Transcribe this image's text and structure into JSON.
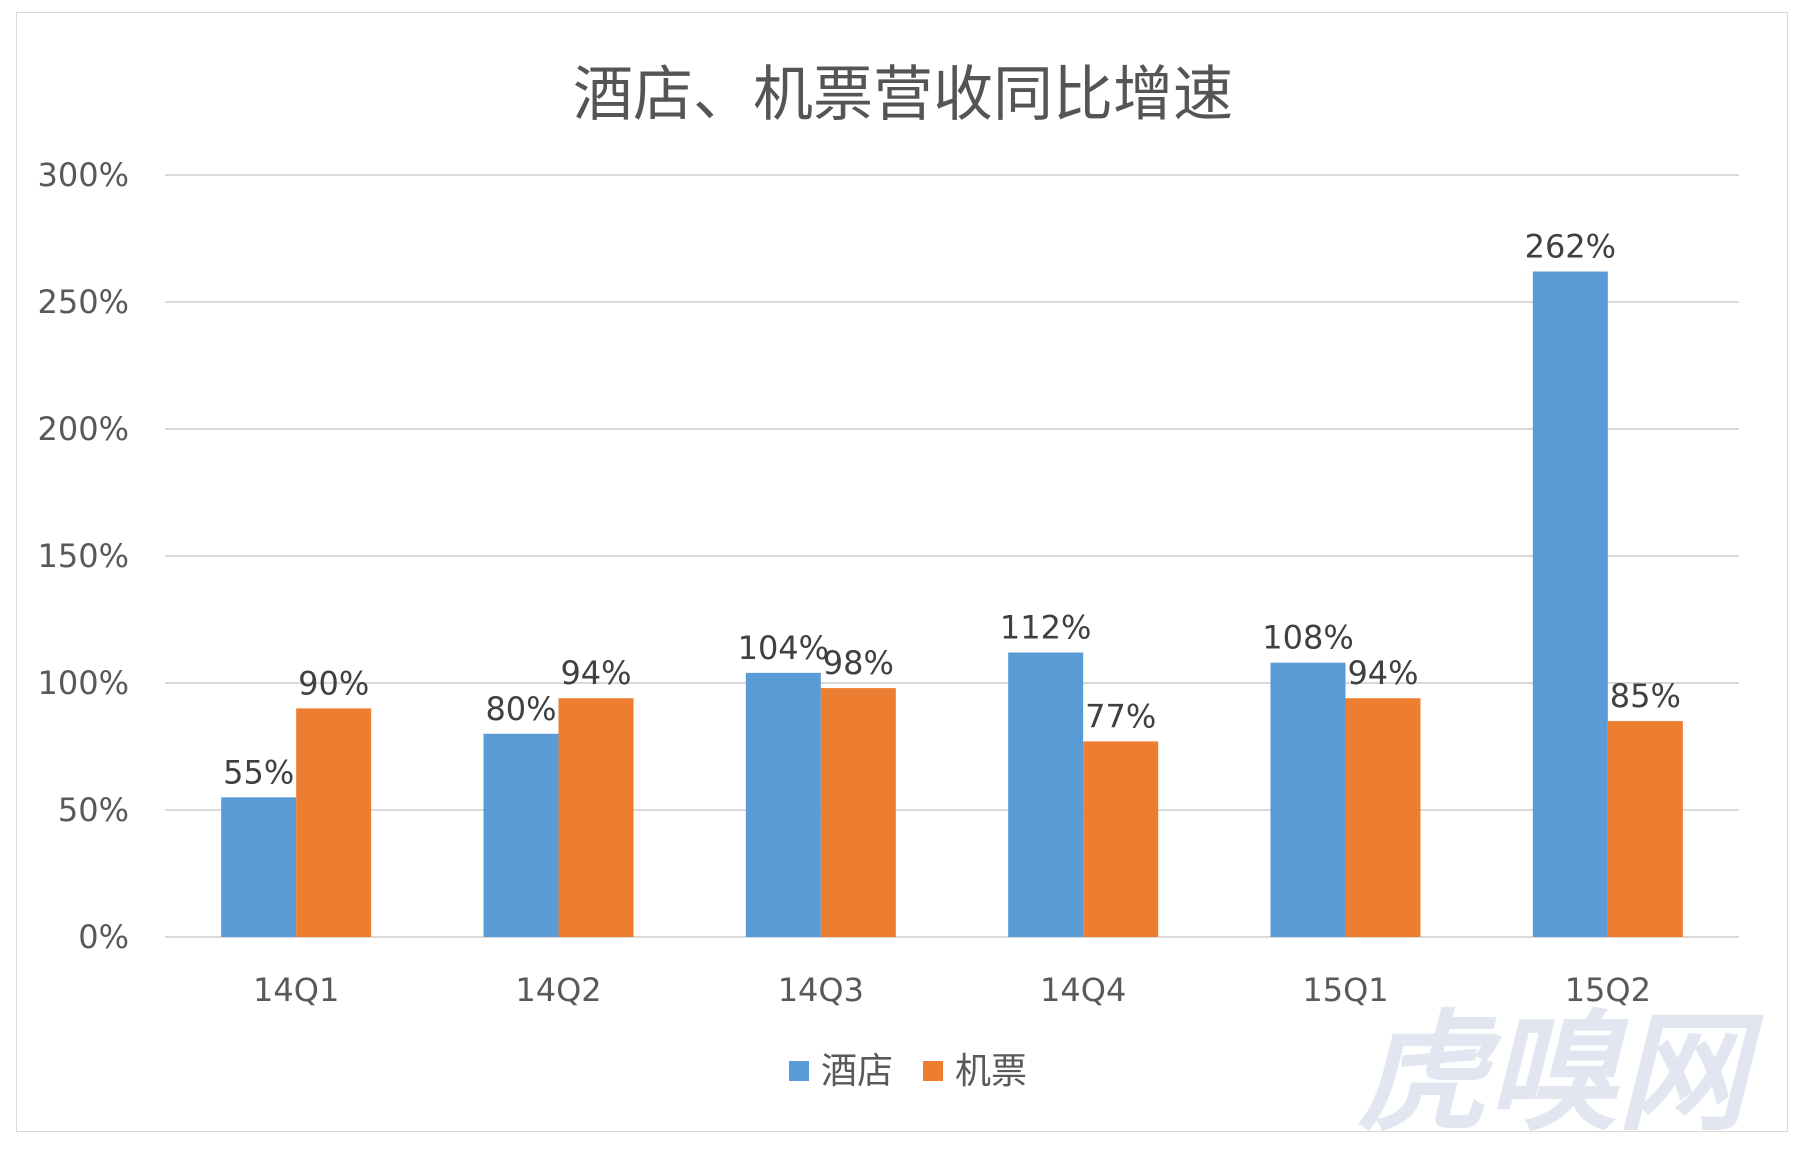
{
  "watermark": "虎嗅网",
  "colors": {
    "hotel": "#5b9bd5",
    "flight": "#ed7d31"
  },
  "chart_data": {
    "type": "bar",
    "title": "酒店、机票营收同比增速",
    "categories": [
      "14Q1",
      "14Q2",
      "14Q3",
      "14Q4",
      "15Q1",
      "15Q2"
    ],
    "series": [
      {
        "name": "酒店",
        "values": [
          55,
          80,
          104,
          112,
          108,
          262
        ],
        "labels": [
          "55%",
          "80%",
          "104%",
          "112%",
          "108%",
          "262%"
        ]
      },
      {
        "name": "机票",
        "values": [
          90,
          94,
          98,
          77,
          94,
          85
        ],
        "labels": [
          "90%",
          "94%",
          "98%",
          "77%",
          "94%",
          "85%"
        ]
      }
    ],
    "ylim": [
      0,
      300
    ],
    "yticks": [
      "0%",
      "50%",
      "100%",
      "150%",
      "200%",
      "250%",
      "300%"
    ],
    "grid": true,
    "legend": "bottom-center",
    "xlabel": "",
    "ylabel": ""
  }
}
